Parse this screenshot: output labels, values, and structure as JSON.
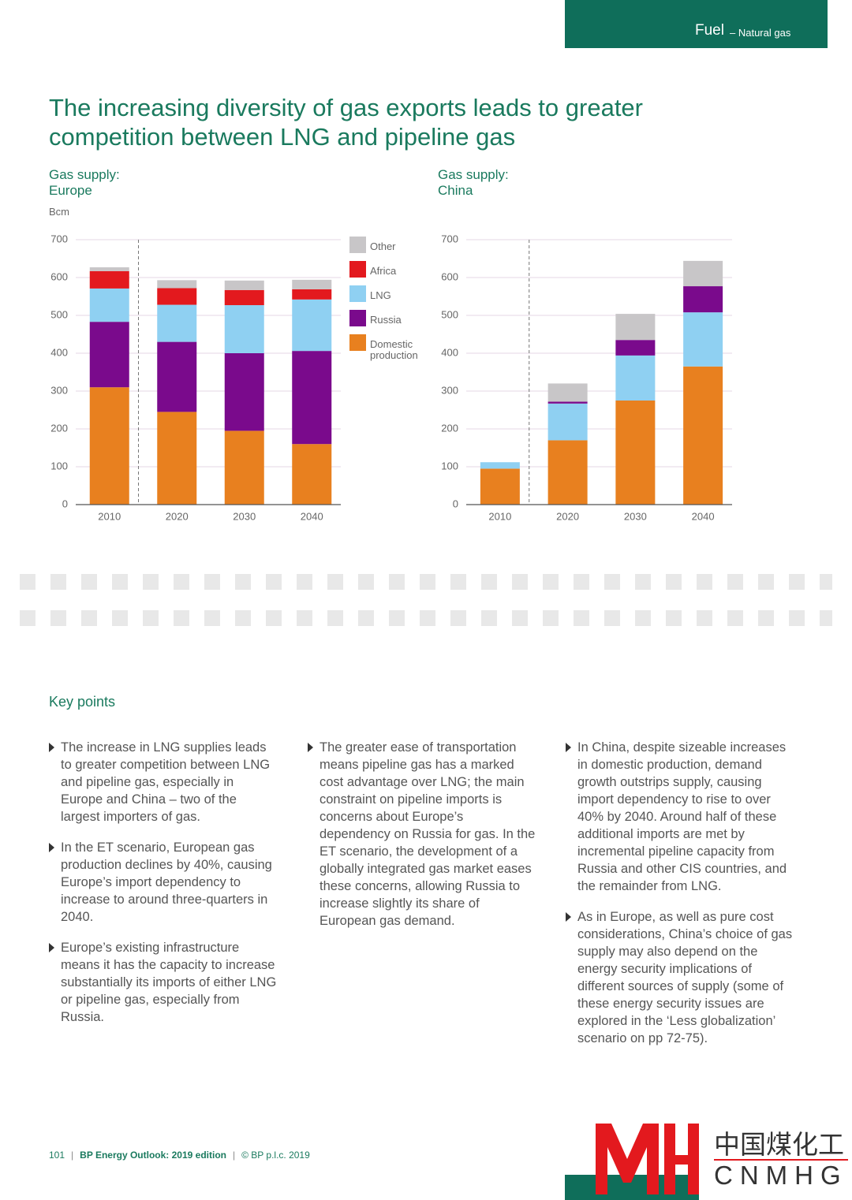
{
  "header": {
    "section": "Fuel",
    "subsection": "– Natural gas"
  },
  "title": "The increasing diversity of gas exports leads to greater\ncompetition between LNG and pipeline gas",
  "chart_data": [
    {
      "type": "stacked_bar",
      "title": "Gas supply:\nEurope",
      "y_label": "Bcm",
      "categories": [
        "2010",
        "2020",
        "2030",
        "2040"
      ],
      "series": [
        {
          "name": "Domestic production",
          "color": "#e8801f",
          "values": [
            310,
            245,
            195,
            160
          ]
        },
        {
          "name": "Russia",
          "color": "#7a0a8c",
          "values": [
            173,
            185,
            205,
            246
          ]
        },
        {
          "name": "LNG",
          "color": "#8fd0f2",
          "values": [
            88,
            98,
            127,
            136
          ]
        },
        {
          "name": "Africa",
          "color": "#e3191e",
          "values": [
            46,
            44,
            40,
            27
          ]
        },
        {
          "name": "Other",
          "color": "#c8c6c8",
          "values": [
            10,
            21,
            25,
            25
          ]
        }
      ],
      "ylim": [
        0,
        700
      ],
      "yticks": [
        0,
        100,
        200,
        300,
        400,
        500,
        600,
        700
      ],
      "grid": true,
      "legend": "right"
    },
    {
      "type": "stacked_bar",
      "title": "Gas supply:\nChina",
      "categories": [
        "2010",
        "2020",
        "2030",
        "2040"
      ],
      "series": [
        {
          "color": "#e8801f",
          "values": [
            95,
            170,
            275,
            365
          ]
        },
        {
          "color": "#8fd0f2",
          "values": [
            17,
            97,
            119,
            143
          ]
        },
        {
          "color": "#7a0a8c",
          "values": [
            0,
            5,
            41,
            69
          ]
        },
        {
          "color": "#c8c6c8",
          "values": [
            0,
            48,
            69,
            67
          ]
        }
      ],
      "ylim": [
        0,
        700
      ],
      "yticks": [
        0,
        100,
        200,
        300,
        400,
        500,
        600,
        700
      ],
      "grid": true
    }
  ],
  "key_points": {
    "title": "Key points",
    "columns": [
      [
        "The increase in LNG supplies leads to greater competition between LNG and pipeline gas, especially in Europe and China – two of the largest importers of gas.",
        "In the ET scenario, European gas production declines by 40%, causing Europe’s import dependency to increase to around three-quarters in 2040.",
        "Europe’s existing infrastructure means it has the capacity to increase substantially its imports of either LNG or pipeline gas, especially from Russia."
      ],
      [
        "The greater ease of transportation means pipeline gas has a marked cost advantage over LNG; the main constraint on pipeline imports is concerns about Europe’s dependency on Russia for gas. In the ET scenario, the development of a globally integrated gas market eases these concerns, allowing Russia to increase slightly its share of European gas demand."
      ],
      [
        "In China, despite sizeable increases in domestic production, demand growth outstrips supply, causing import dependency to rise to over 40% by 2040. Around half of these additional imports are met by incremental pipeline capacity from Russia and other CIS countries, and the remainder from LNG.",
        "As in Europe, as well as pure cost considerations, China’s choice of gas supply may also depend on the energy security implications of different sources of supply (some of these energy security issues are explored in the ‘Less globalization’ scenario on pp 72-75)."
      ]
    ]
  },
  "footer": {
    "page": "101",
    "publication": "BP Energy Outlook: 2019 edition",
    "copyright": "© BP p.l.c. 2019"
  },
  "watermark": {
    "chinese": "中国煤化工",
    "latin": "CNMHG"
  }
}
